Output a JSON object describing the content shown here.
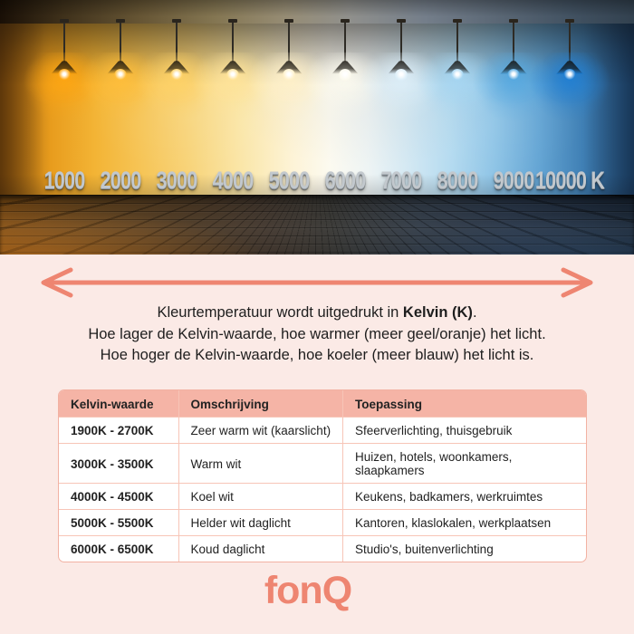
{
  "colors": {
    "background_pink": "#FBEAE6",
    "accent_coral": "#EE8571",
    "table_header_bg": "#F5B4A6",
    "table_border": "#F2B2A3",
    "text_dark": "#1E1E1E"
  },
  "hero": {
    "lamps": [
      {
        "label": "1000",
        "glow": "#FFA612"
      },
      {
        "label": "2000",
        "glow": "#FFBE3A"
      },
      {
        "label": "3000",
        "glow": "#FFD266"
      },
      {
        "label": "4000",
        "glow": "#FFE398"
      },
      {
        "label": "5000",
        "glow": "#FFF0C8"
      },
      {
        "label": "6000",
        "glow": "#FCFAEE"
      },
      {
        "label": "7000",
        "glow": "#DDEFF9"
      },
      {
        "label": "8000",
        "glow": "#A6D6F2"
      },
      {
        "label": "9000",
        "glow": "#55A8E0"
      },
      {
        "label": "10000 K",
        "glow": "#1F7FD4"
      }
    ]
  },
  "description": {
    "line1_prefix": "Kleurtemperatuur wordt uitgedrukt in ",
    "line1_bold": "Kelvin (K)",
    "line1_suffix": ".",
    "line2": "Hoe lager de Kelvin-waarde, hoe warmer (meer geel/oranje) het licht.",
    "line3": "Hoe hoger de Kelvin-waarde, hoe koeler (meer blauw) het licht is."
  },
  "table": {
    "headers": [
      "Kelvin-waarde",
      "Omschrijving",
      "Toepassing"
    ],
    "rows": [
      [
        "1900K - 2700K",
        "Zeer warm wit (kaarslicht)",
        "Sfeerverlichting, thuisgebruik"
      ],
      [
        "3000K - 3500K",
        "Warm wit",
        "Huizen, hotels, woonkamers, slaapkamers"
      ],
      [
        "4000K - 4500K",
        "Koel wit",
        "Keukens, badkamers, werkruimtes"
      ],
      [
        "5000K - 5500K",
        "Helder wit daglicht",
        "Kantoren, klaslokalen, werkplaatsen"
      ],
      [
        "6000K - 6500K",
        "Koud daglicht",
        "Studio's, buitenverlichting"
      ]
    ]
  },
  "logo": {
    "text": "fonQ"
  }
}
